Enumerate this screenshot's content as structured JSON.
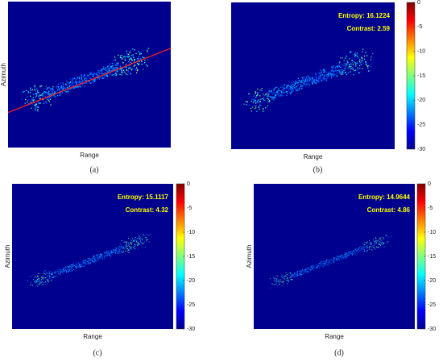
{
  "panels": [
    {
      "label": "(a)",
      "x_label": "Range",
      "y_label": "Azimuth"
    },
    {
      "label": "(b)",
      "x_label": "Range",
      "entropy": "Entropy: 16.1224",
      "contrast": "Contrast: 2.59",
      "colorbar": {
        "lim": [
          -30,
          0
        ],
        "ticks": [
          0,
          -5,
          -10,
          -15,
          -20,
          -25,
          -30
        ]
      }
    },
    {
      "label": "(c)",
      "x_label": "Range",
      "y_label": "Azimuth",
      "entropy": "Entropy: 15.1117",
      "contrast": "Contrast: 4.32",
      "colorbar": {
        "lim": [
          -30,
          0
        ],
        "ticks": [
          0,
          -5,
          -10,
          -15,
          -20,
          -25,
          -30
        ]
      }
    },
    {
      "label": "(d)",
      "x_label": "Range",
      "y_label": "Azimuth",
      "entropy": "Entropy: 14.9644",
      "contrast": "Contrast: 4.86",
      "colorbar": {
        "lim": [
          -30,
          0
        ],
        "ticks": [
          0,
          -5,
          -10,
          -15,
          -20,
          -25,
          -30
        ]
      }
    }
  ]
}
